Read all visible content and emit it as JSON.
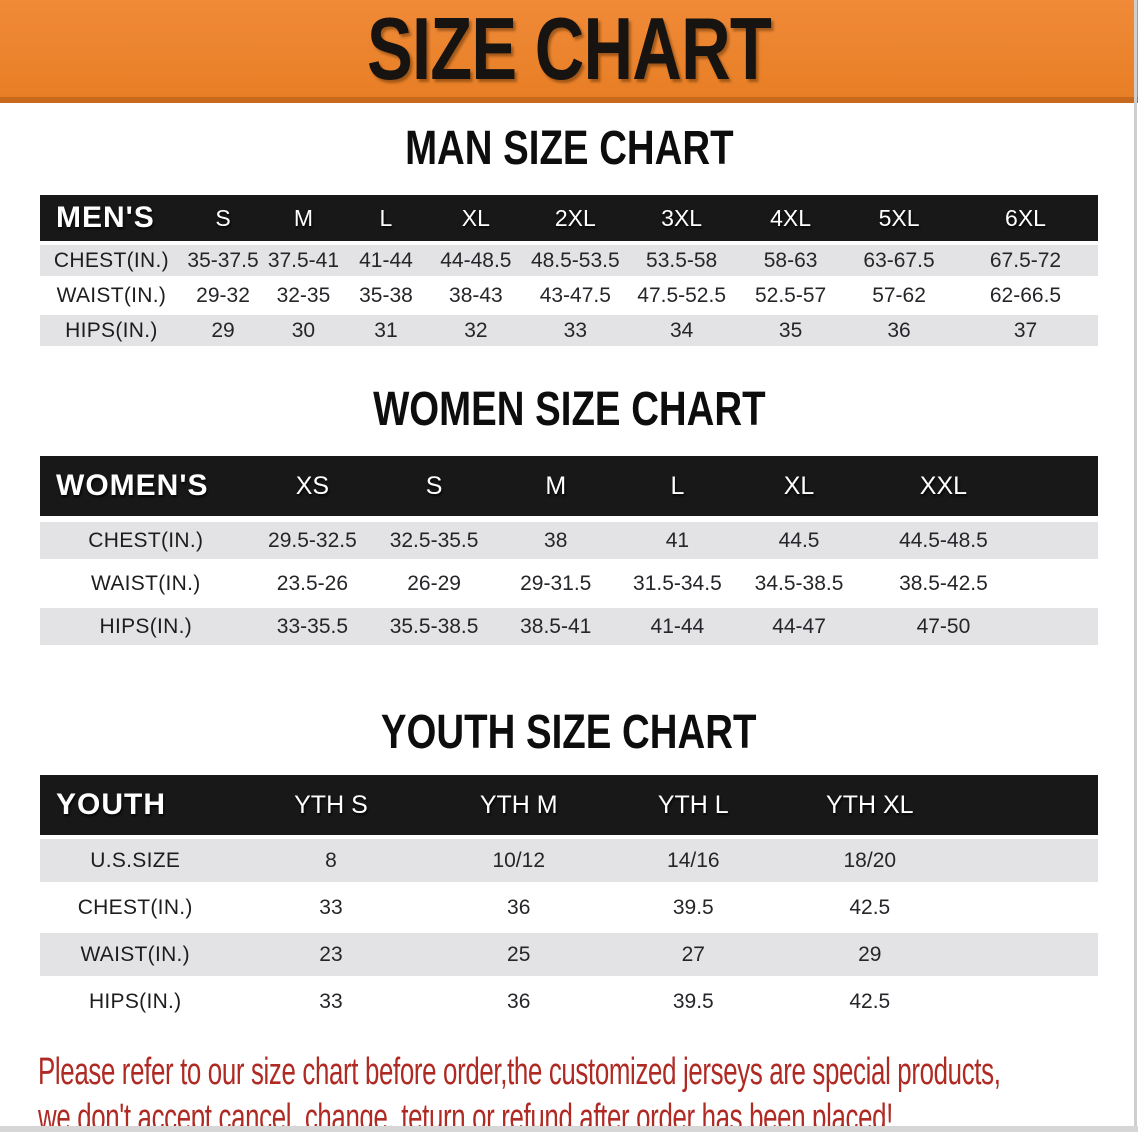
{
  "banner": {
    "title": "SIZE CHART"
  },
  "colors": {
    "banner_bg": "#ED8230",
    "banner_border": "#C9691C",
    "header_bar_bg": "#181818",
    "row_alt_bg": "#E3E3E5",
    "text": "#26262A",
    "disclaimer_red": "#B02A24"
  },
  "sections": [
    {
      "title": "MAN SIZE CHART",
      "header_label": "MEN'S",
      "columns": [
        "S",
        "M",
        "L",
        "XL",
        "2XL",
        "3XL",
        "4XL",
        "5XL",
        "6XL"
      ],
      "rows": [
        {
          "label": "CHEST(IN.)",
          "values": [
            "35-37.5",
            "37.5-41",
            "41-44",
            "44-48.5",
            "48.5-53.5",
            "53.5-58",
            "58-63",
            "63-67.5",
            "67.5-72"
          ]
        },
        {
          "label": "WAIST(IN.)",
          "values": [
            "29-32",
            "32-35",
            "35-38",
            "38-43",
            "43-47.5",
            "47.5-52.5",
            "52.5-57",
            "57-62",
            "62-66.5"
          ]
        },
        {
          "label": "HIPS(IN.)",
          "values": [
            "29",
            "30",
            "31",
            "32",
            "33",
            "34",
            "35",
            "36",
            "37"
          ]
        }
      ]
    },
    {
      "title": "WOMEN SIZE CHART",
      "header_label": "WOMEN'S",
      "columns": [
        "XS",
        "S",
        "M",
        "L",
        "XL",
        "XXL"
      ],
      "rows": [
        {
          "label": "CHEST(IN.)",
          "values": [
            "29.5-32.5",
            "32.5-35.5",
            "38",
            "41",
            "44.5",
            "44.5-48.5"
          ]
        },
        {
          "label": "WAIST(IN.)",
          "values": [
            "23.5-26",
            "26-29",
            "29-31.5",
            "31.5-34.5",
            "34.5-38.5",
            "38.5-42.5"
          ]
        },
        {
          "label": "HIPS(IN.)",
          "values": [
            "33-35.5",
            "35.5-38.5",
            "38.5-41",
            "41-44",
            "44-47",
            "47-50"
          ]
        }
      ]
    },
    {
      "title": "YOUTH SIZE CHART",
      "header_label": "YOUTH",
      "columns": [
        "YTH S",
        "YTH M",
        "YTH L",
        "YTH XL"
      ],
      "rows": [
        {
          "label": "U.S.SIZE",
          "values": [
            "8",
            "10/12",
            "14/16",
            "18/20"
          ]
        },
        {
          "label": "CHEST(IN.)",
          "values": [
            "33",
            "36",
            "39.5",
            "42.5"
          ]
        },
        {
          "label": "WAIST(IN.)",
          "values": [
            "23",
            "25",
            "27",
            "29"
          ]
        },
        {
          "label": "HIPS(IN.)",
          "values": [
            "33",
            "36",
            "39.5",
            "42.5"
          ]
        }
      ]
    }
  ],
  "disclaimer": {
    "line1": "Please refer to our size chart before order,the customized jerseys are special products,",
    "line2": "we don't accept cancel, change, teturn or refund after order has been placed!"
  }
}
